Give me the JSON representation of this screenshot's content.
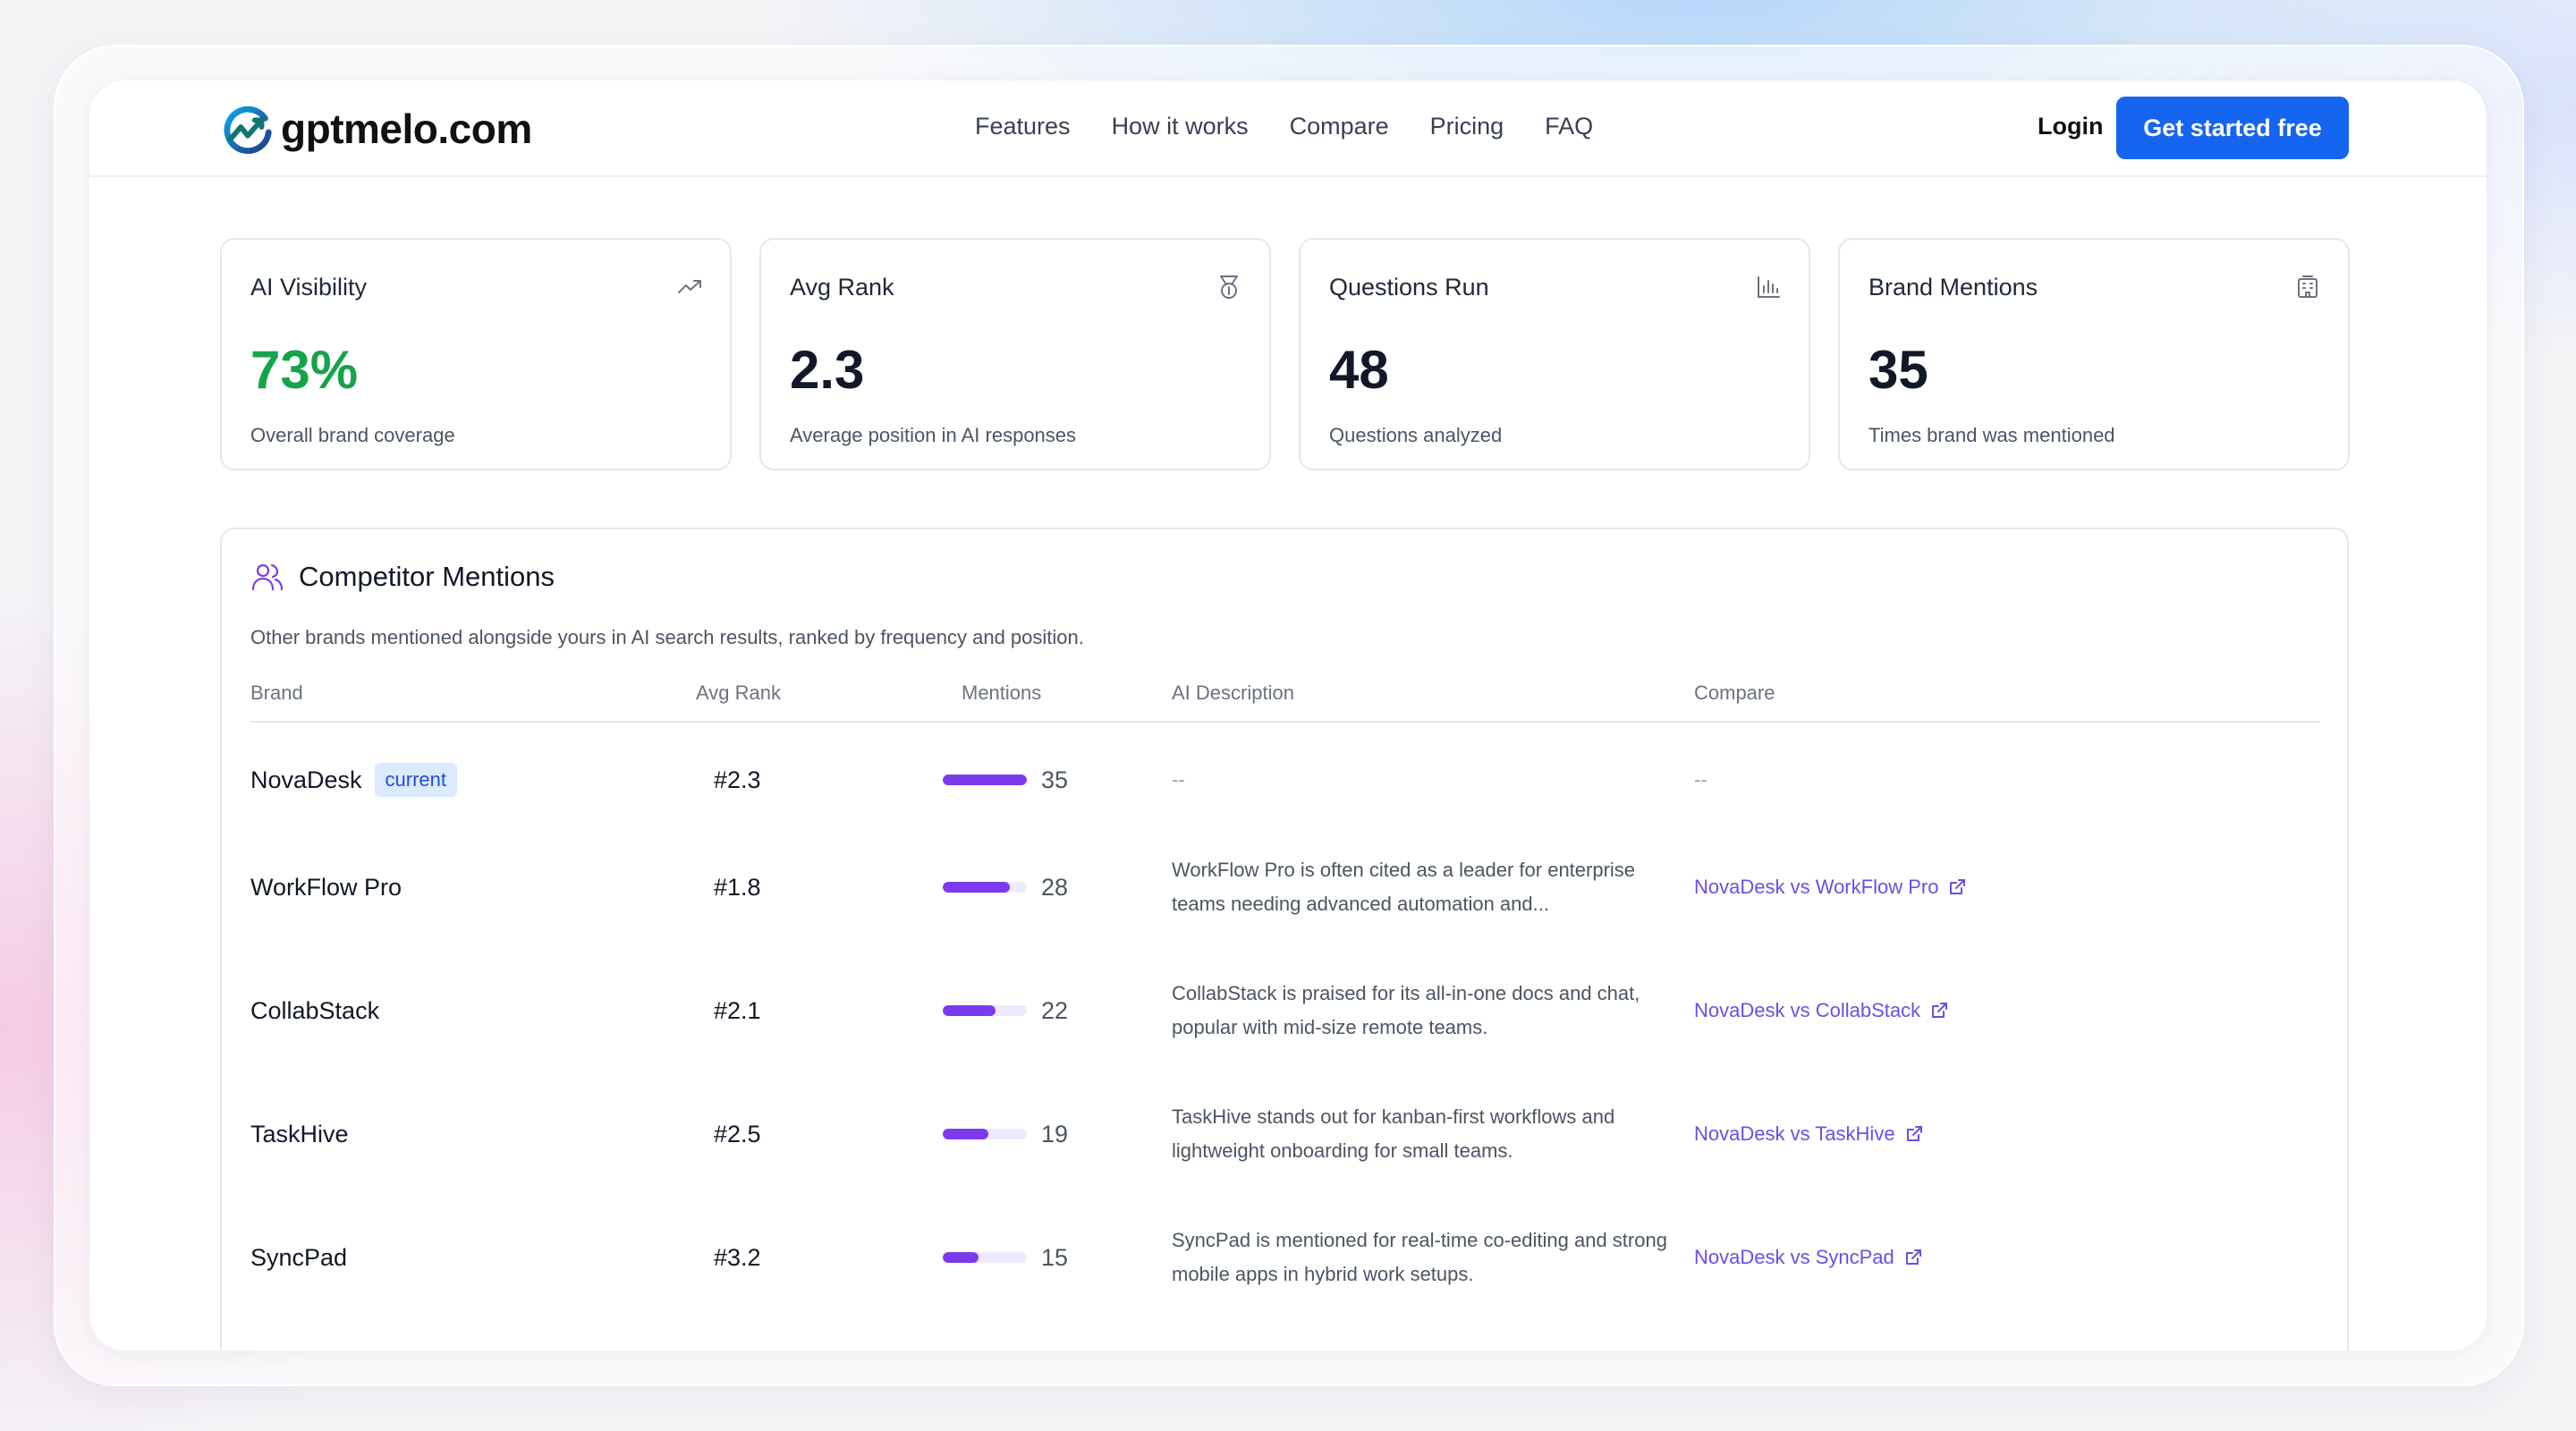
{
  "nav": {
    "logo_text": "gptmelo.com",
    "links": [
      "Features",
      "How it works",
      "Compare",
      "Pricing",
      "FAQ"
    ],
    "login": "Login",
    "cta": "Get started free"
  },
  "stats": [
    {
      "title": "AI Visibility",
      "value": "73%",
      "subtitle": "Overall brand coverage",
      "icon": "trending-up-icon",
      "value_color": "#16a34a"
    },
    {
      "title": "Avg Rank",
      "value": "2.3",
      "subtitle": "Average position in AI responses",
      "icon": "medal-icon"
    },
    {
      "title": "Questions Run",
      "value": "48",
      "subtitle": "Questions analyzed",
      "icon": "bar-chart-icon"
    },
    {
      "title": "Brand Mentions",
      "value": "35",
      "subtitle": "Times brand was mentioned",
      "icon": "building-icon"
    }
  ],
  "competitors": {
    "title": "Competitor Mentions",
    "description": "Other brands mentioned alongside yours in AI search results, ranked by frequency and position.",
    "columns": [
      "Brand",
      "Avg Rank",
      "Mentions",
      "AI Description",
      "Compare"
    ],
    "rows": [
      {
        "brand": "NovaDesk",
        "badge": "current",
        "rank": "#2.3",
        "mentions": "35",
        "bar_fraction": 1.0,
        "description": "--",
        "compare": "--"
      },
      {
        "brand": "WorkFlow Pro",
        "rank": "#1.8",
        "mentions": "28",
        "bar_fraction": 0.8,
        "description": "WorkFlow Pro is often cited as a leader for enterprise teams needing advanced automation and...",
        "compare": "NovaDesk vs WorkFlow Pro"
      },
      {
        "brand": "CollabStack",
        "rank": "#2.1",
        "mentions": "22",
        "bar_fraction": 0.63,
        "description": "CollabStack is praised for its all-in-one docs and chat, popular with mid-size remote teams.",
        "compare": "NovaDesk vs CollabStack"
      },
      {
        "brand": "TaskHive",
        "rank": "#2.5",
        "mentions": "19",
        "bar_fraction": 0.54,
        "description": "TaskHive stands out for kanban-first workflows and lightweight onboarding for small teams.",
        "compare": "NovaDesk vs TaskHive"
      },
      {
        "brand": "SyncPad",
        "rank": "#3.2",
        "mentions": "15",
        "bar_fraction": 0.43,
        "description": "SyncPad is mentioned for real-time co-editing and strong mobile apps in hybrid work setups.",
        "compare": "NovaDesk vs SyncPad"
      }
    ]
  },
  "colors": {
    "accent": "#1565f0",
    "bar": "#7c3aed",
    "link": "#6d4ce8",
    "positive": "#16a34a"
  }
}
